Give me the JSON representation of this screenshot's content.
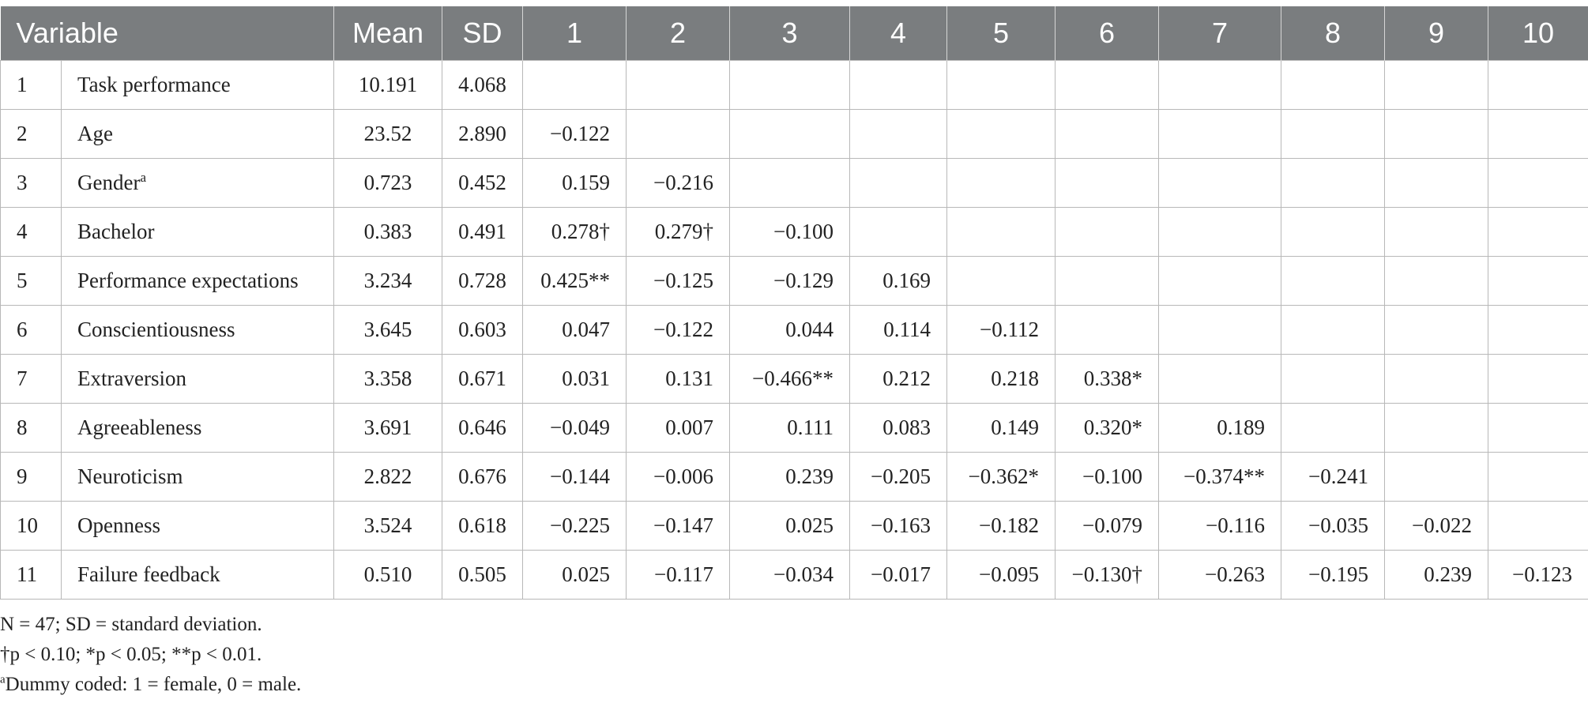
{
  "header": {
    "variable": "Variable",
    "mean": "Mean",
    "sd": "SD",
    "cols": [
      "1",
      "2",
      "3",
      "4",
      "5",
      "6",
      "7",
      "8",
      "9",
      "10"
    ]
  },
  "rows": [
    {
      "n": "1",
      "name": "Task performance",
      "mean": "10.191",
      "sd": "4.068",
      "c": []
    },
    {
      "n": "2",
      "name": "Age",
      "mean": "23.52",
      "sd": "2.890",
      "c": [
        "−0.122"
      ]
    },
    {
      "n": "3",
      "name": "Gender",
      "name_sup": "a",
      "mean": "0.723",
      "sd": "0.452",
      "c": [
        "0.159",
        "−0.216"
      ]
    },
    {
      "n": "4",
      "name": "Bachelor",
      "mean": "0.383",
      "sd": "0.491",
      "c": [
        "0.278†",
        "0.279†",
        "−0.100"
      ]
    },
    {
      "n": "5",
      "name": "Performance expectations",
      "mean": "3.234",
      "sd": "0.728",
      "c": [
        "0.425**",
        "−0.125",
        "−0.129",
        "0.169"
      ]
    },
    {
      "n": "6",
      "name": "Conscientiousness",
      "mean": "3.645",
      "sd": "0.603",
      "c": [
        "0.047",
        "−0.122",
        "0.044",
        "0.114",
        "−0.112"
      ]
    },
    {
      "n": "7",
      "name": "Extraversion",
      "mean": "3.358",
      "sd": "0.671",
      "c": [
        "0.031",
        "0.131",
        "−0.466**",
        "0.212",
        "0.218",
        "0.338*"
      ]
    },
    {
      "n": "8",
      "name": "Agreeableness",
      "mean": "3.691",
      "sd": "0.646",
      "c": [
        "−0.049",
        "0.007",
        "0.111",
        "0.083",
        "0.149",
        "0.320*",
        "0.189"
      ]
    },
    {
      "n": "9",
      "name": "Neuroticism",
      "mean": "2.822",
      "sd": "0.676",
      "c": [
        "−0.144",
        "−0.006",
        "0.239",
        "−0.205",
        "−0.362*",
        "−0.100",
        "−0.374**",
        "−0.241"
      ]
    },
    {
      "n": "10",
      "name": "Openness",
      "mean": "3.524",
      "sd": "0.618",
      "c": [
        "−0.225",
        "−0.147",
        "0.025",
        "−0.163",
        "−0.182",
        "−0.079",
        "−0.116",
        "−0.035",
        "−0.022"
      ]
    },
    {
      "n": "11",
      "name": "Failure feedback",
      "mean": "0.510",
      "sd": "0.505",
      "c": [
        "0.025",
        "−0.117",
        "−0.034",
        "−0.017",
        "−0.095",
        "−0.130†",
        "−0.263",
        "−0.195",
        "0.239",
        "−0.123"
      ]
    }
  ],
  "notes": {
    "line1": "N = 47; SD = standard deviation.",
    "line2": "†p < 0.10; *p < 0.05; **p < 0.01.",
    "line3_sup": "a",
    "line3": "Dummy coded: 1 = female, 0 = male."
  }
}
